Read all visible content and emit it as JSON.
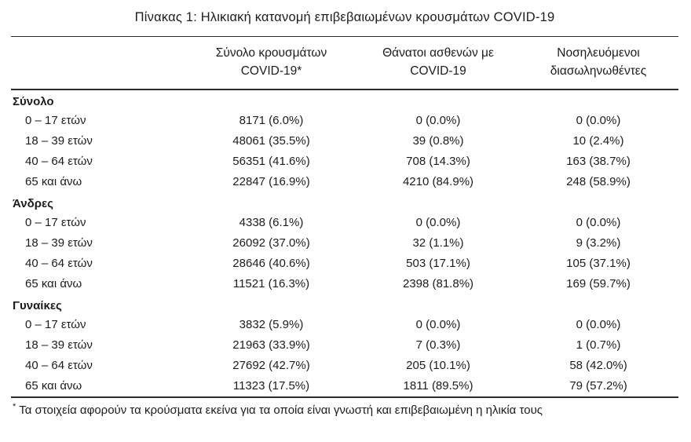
{
  "page": {
    "title": "Πίνακας 1: Ηλικιακή κατανομή επιβεβαιωμένων κρουσμάτων COVID-19"
  },
  "table": {
    "header": {
      "cases": {
        "line1": "Σύνολο κρουσμάτων",
        "line2": "COVID-19*"
      },
      "deaths": {
        "line1": "Θάνατοι ασθενών με",
        "line2": "COVID-19"
      },
      "intubated": {
        "line1": "Νοσηλευόμενοι",
        "line2": "διασωληνωθέντες"
      }
    },
    "groups": [
      {
        "label": "Σύνολο",
        "rows": [
          {
            "label": "0 – 17 ετών",
            "values": [
              "8171 (6.0%)",
              "0 (0.0%)",
              "0 (0.0%)"
            ]
          },
          {
            "label": "18 – 39 ετών",
            "values": [
              "48061 (35.5%)",
              "39 (0.8%)",
              "10 (2.4%)"
            ]
          },
          {
            "label": "40 – 64 ετών",
            "values": [
              "56351 (41.6%)",
              "708 (14.3%)",
              "163 (38.7%)"
            ]
          },
          {
            "label": "65 και άνω",
            "values": [
              "22847 (16.9%)",
              "4210 (84.9%)",
              "248 (58.9%)"
            ]
          }
        ]
      },
      {
        "label": "Άνδρες",
        "rows": [
          {
            "label": "0 – 17 ετών",
            "values": [
              "4338 (6.1%)",
              "0 (0.0%)",
              "0 (0.0%)"
            ]
          },
          {
            "label": "18 – 39 ετών",
            "values": [
              "26092 (37.0%)",
              "32 (1.1%)",
              "9 (3.2%)"
            ]
          },
          {
            "label": "40 – 64 ετών",
            "values": [
              "28646 (40.6%)",
              "503 (17.1%)",
              "105 (37.1%)"
            ]
          },
          {
            "label": "65 και άνω",
            "values": [
              "11521 (16.3%)",
              "2398 (81.8%)",
              "169 (59.7%)"
            ]
          }
        ]
      },
      {
        "label": "Γυναίκες",
        "rows": [
          {
            "label": "0 – 17 ετών",
            "values": [
              "3832 (5.9%)",
              "0 (0.0%)",
              "0 (0.0%)"
            ]
          },
          {
            "label": "18 – 39 ετών",
            "values": [
              "21963 (33.9%)",
              "7 (0.3%)",
              "1 (0.7%)"
            ]
          },
          {
            "label": "40 – 64 ετών",
            "values": [
              "27692 (42.7%)",
              "205 (10.1%)",
              "58 (42.0%)"
            ]
          },
          {
            "label": "65 και άνω",
            "values": [
              "11323 (17.5%)",
              "1811 (89.5%)",
              "79 (57.2%)"
            ]
          }
        ]
      }
    ],
    "footnote": {
      "marker": "*",
      "text": "Τα στοιχεία αφορούν τα κρούσματα εκείνα για τα οποία είναι γνωστή και επιβεβαιωμένη η ηλικία τους"
    }
  }
}
